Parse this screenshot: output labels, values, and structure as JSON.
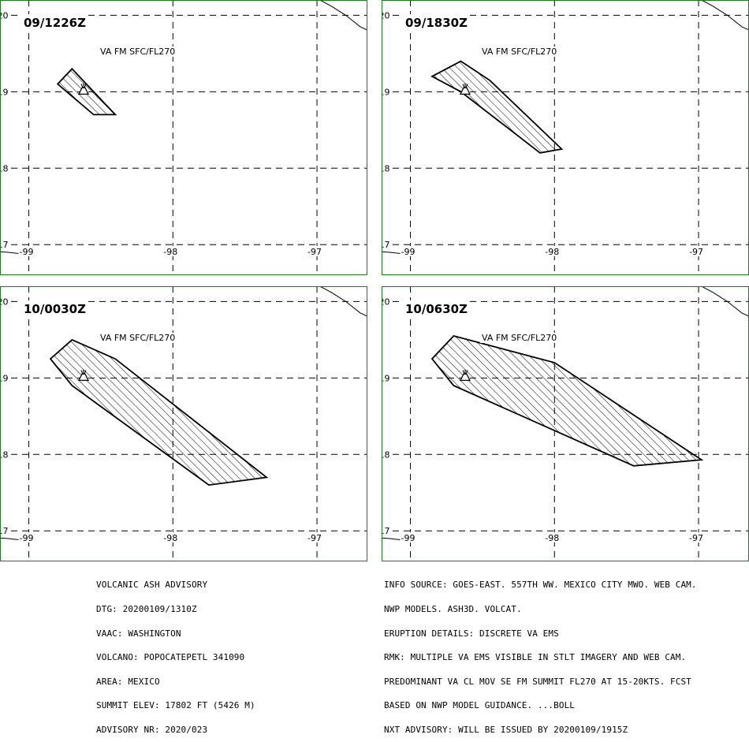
{
  "panels": [
    {
      "title": "09/1226Z",
      "label": "VA FM SFC/FL270",
      "polygon": [
        [
          -98.7,
          19.3
        ],
        [
          -98.6,
          19.1
        ],
        [
          -98.4,
          18.7
        ],
        [
          -98.55,
          18.7
        ],
        [
          -98.8,
          19.1
        ]
      ]
    },
    {
      "title": "09/1830Z",
      "label": "VA FM SFC/FL270",
      "polygon": [
        [
          -98.65,
          19.4
        ],
        [
          -98.45,
          19.15
        ],
        [
          -97.95,
          18.25
        ],
        [
          -98.1,
          18.2
        ],
        [
          -98.65,
          19.0
        ],
        [
          -98.85,
          19.2
        ]
      ]
    },
    {
      "title": "10/0030Z",
      "label": "VA FM SFC/FL270",
      "polygon": [
        [
          -98.7,
          19.5
        ],
        [
          -98.4,
          19.25
        ],
        [
          -97.35,
          17.7
        ],
        [
          -97.75,
          17.6
        ],
        [
          -98.7,
          18.9
        ],
        [
          -98.85,
          19.25
        ]
      ]
    },
    {
      "title": "10/0630Z",
      "label": "VA FM SFC/FL270",
      "polygon": [
        [
          -98.7,
          19.55
        ],
        [
          -98.0,
          19.2
        ],
        [
          -96.98,
          17.93
        ],
        [
          -97.45,
          17.85
        ],
        [
          -98.7,
          18.9
        ],
        [
          -98.85,
          19.25
        ]
      ]
    }
  ],
  "map": {
    "lon_ticks": [
      "-99",
      "-98",
      "-97"
    ],
    "lat_ticks": [
      "20",
      "19",
      "18",
      "17"
    ],
    "volcano": {
      "lon": -98.62,
      "lat": 19.02
    },
    "lon_range": [
      -99.2,
      -96.65
    ],
    "lat_range": [
      16.6,
      20.2
    ]
  },
  "advisory_left": [
    "VOLCANIC ASH ADVISORY",
    "DTG: 20200109/1310Z",
    "VAAC: WASHINGTON",
    "VOLCANO: POPOCATEPETL 341090",
    "AREA: MEXICO",
    "SUMMIT ELEV: 17802 FT (5426 M)",
    "ADVISORY NR: 2020/023"
  ],
  "advisory_right": [
    "INFO SOURCE: GOES-EAST. 557TH WW. MEXICO CITY MWO. WEB CAM.",
    "NWP MODELS. ASH3D. VOLCAT.",
    "ERUPTION DETAILS: DISCRETE VA EMS",
    "RMK: MULTIPLE VA EMS VISIBLE IN STLT IMAGERY AND WEB CAM.",
    "PREDOMINANT VA CL MOV SE FM SUMMIT FL270 AT 15-20KTS. FCST",
    "BASED ON NWP MODEL GUIDANCE. ...BOLL",
    "NXT ADVISORY: WILL BE ISSUED BY 20200109/1915Z"
  ],
  "colors": {
    "frame": "#1f7a1f",
    "grid": "#000000",
    "ash": "#000000"
  }
}
